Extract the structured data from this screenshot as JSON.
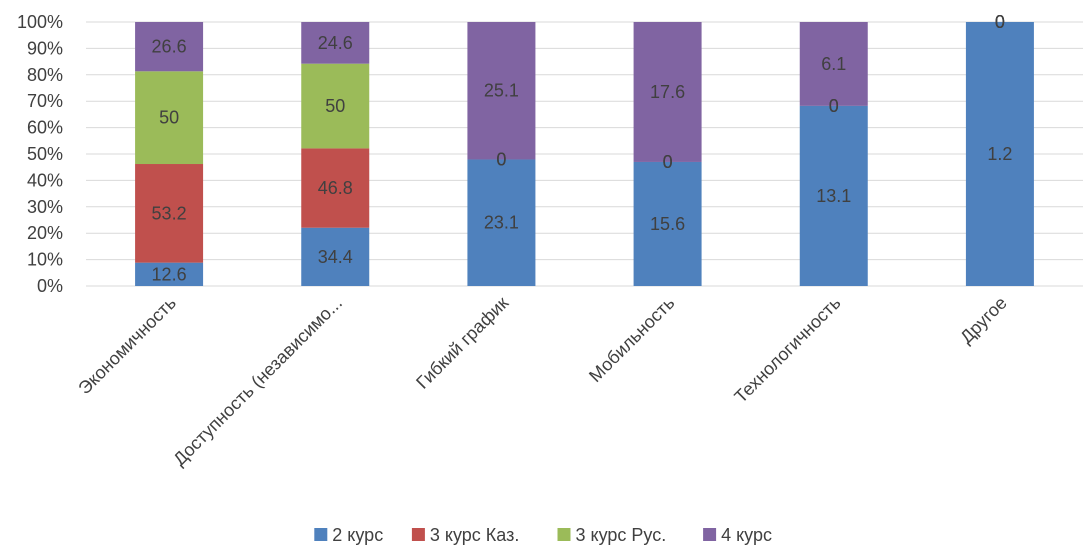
{
  "chart_data": {
    "type": "bar",
    "stacked": "percent",
    "categories": [
      "Экономичность",
      "Доступность (независимо...",
      "Гибкий график",
      "Мобильность",
      "Технологичность",
      "Другое"
    ],
    "series": [
      {
        "name": "2 курс",
        "values": [
          12.6,
          34.4,
          23.1,
          15.6,
          13.1,
          1.2
        ],
        "color": "#4f81bd"
      },
      {
        "name": "3 курс Каз.",
        "values": [
          53.2,
          46.8,
          0,
          0,
          0,
          0
        ],
        "color": "#c0504d"
      },
      {
        "name": "3 курс Рус.",
        "values": [
          50,
          50,
          0,
          0,
          0,
          0
        ],
        "color": "#9bbb59"
      },
      {
        "name": "4 курс",
        "values": [
          26.6,
          24.6,
          25.1,
          17.6,
          6.1,
          0
        ],
        "color": "#8064a2"
      }
    ],
    "y_ticks": [
      "0%",
      "10%",
      "20%",
      "30%",
      "40%",
      "50%",
      "60%",
      "70%",
      "80%",
      "90%",
      "100%"
    ],
    "ylim": [
      0,
      100
    ],
    "grid": true,
    "legend": "bottom"
  }
}
